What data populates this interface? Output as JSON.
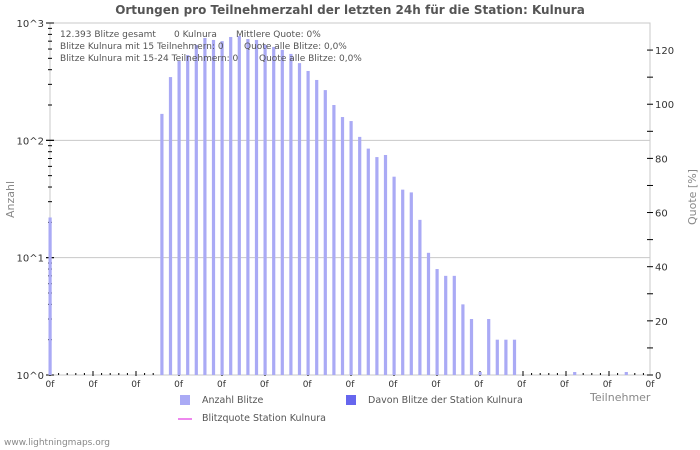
{
  "title": "Ortungen pro Teilnehmerzahl der letzten 24h für die Station: Kulnura",
  "info": {
    "line1a": "12.393 Blitze gesamt",
    "line1b": "0 Kulnura",
    "line1c": "Mittlere Quote: 0%",
    "line2a": "Blitze Kulnura mit 15 Teilnehmern: 0",
    "line2b": "Quote alle Blitze: 0,0%",
    "line3a": "Blitze Kulnura mit 15-24 Teilnehmern: 0",
    "line3b": "Quote alle Blitze: 0,0%"
  },
  "axes": {
    "ylabel_left": "Anzahl",
    "ylabel_right": "Quote [%]",
    "xlabel": "Teilnehmer",
    "left_ticks": [
      "10^3",
      "10^2",
      "10^1",
      "10^0"
    ],
    "right_ticks": [
      "120",
      "100",
      "80",
      "60",
      "40",
      "20",
      "0"
    ],
    "x_ticks": [
      "0f",
      "0f",
      "0f",
      "0f",
      "0f",
      "0f",
      "0f",
      "0f",
      "0f",
      "0f",
      "0f",
      "0f",
      "0f",
      "0f",
      "0f"
    ]
  },
  "legend": {
    "item1": "Anzahl Blitze",
    "item2": "Davon Blitze der Station Kulnura",
    "item3": "Blitzquote Station Kulnura"
  },
  "colors": {
    "bar": "#aaaaf5",
    "bar_station": "#6666ee",
    "quote_line": "#ee88ee",
    "grid": "#c8c8c8",
    "text": "#555555"
  },
  "footer": "www.lightningmaps.org",
  "chart_data": {
    "type": "bar",
    "title": "Ortungen pro Teilnehmerzahl der letzten 24h für die Station: Kulnura",
    "xlabel": "Teilnehmer",
    "ylabel": "Anzahl",
    "y2label": "Quote [%]",
    "yscale": "log",
    "ylim": [
      1,
      1000
    ],
    "y2lim": [
      0,
      130
    ],
    "grid": true,
    "legend_position": "bottom",
    "x": [
      0,
      13,
      14,
      15,
      16,
      17,
      18,
      19,
      20,
      21,
      22,
      23,
      24,
      25,
      26,
      27,
      28,
      29,
      30,
      31,
      32,
      33,
      34,
      35,
      36,
      37,
      38,
      39,
      40,
      41,
      42,
      43,
      44,
      45,
      46,
      47,
      48,
      49,
      50,
      51,
      52,
      53,
      54,
      61,
      67
    ],
    "series": [
      {
        "name": "Anzahl Blitze",
        "values": [
          22,
          168,
          346,
          474,
          533,
          650,
          745,
          717,
          700,
          760,
          775,
          730,
          717,
          650,
          625,
          590,
          545,
          455,
          390,
          327,
          268,
          200,
          158,
          146,
          107,
          85,
          72,
          75,
          49,
          38,
          36,
          21,
          11,
          8,
          7,
          7,
          4,
          3,
          1,
          3,
          2,
          2,
          2,
          1,
          1
        ]
      },
      {
        "name": "Davon Blitze der Station Kulnura",
        "values": [
          0,
          0,
          0,
          0,
          0,
          0,
          0,
          0,
          0,
          0,
          0,
          0,
          0,
          0,
          0,
          0,
          0,
          0,
          0,
          0,
          0,
          0,
          0,
          0,
          0,
          0,
          0,
          0,
          0,
          0,
          0,
          0,
          0,
          0,
          0,
          0,
          0,
          0,
          0,
          0,
          0,
          0,
          0,
          0,
          0
        ]
      },
      {
        "name": "Blitzquote Station Kulnura",
        "values": [
          0,
          0,
          0,
          0,
          0,
          0,
          0,
          0,
          0,
          0,
          0,
          0,
          0,
          0,
          0,
          0,
          0,
          0,
          0,
          0,
          0,
          0,
          0,
          0,
          0,
          0,
          0,
          0,
          0,
          0,
          0,
          0,
          0,
          0,
          0,
          0,
          0,
          0,
          0,
          0,
          0,
          0,
          0,
          0,
          0
        ]
      }
    ]
  }
}
